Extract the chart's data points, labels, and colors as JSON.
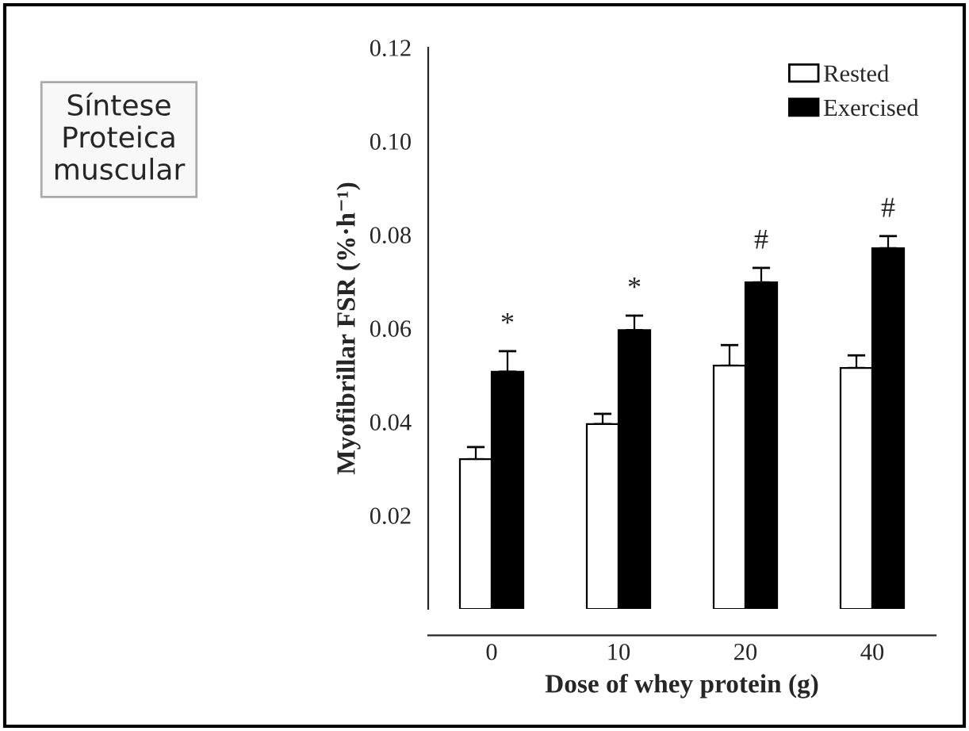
{
  "chart_data": {
    "type": "bar",
    "title": "Síntese\nProteica\nmuscular",
    "xlabel": "Dose of whey protein (g)",
    "ylabel": "Myofibrillar FSR (%·h⁻¹)",
    "categories": [
      "0",
      "10",
      "20",
      "40"
    ],
    "series": [
      {
        "name": "Rested",
        "color": "#ffffff",
        "values": [
          0.032,
          0.0395,
          0.052,
          0.0515
        ],
        "errors": [
          [
            0.032,
            0.0346
          ],
          [
            0.0395,
            0.0417
          ],
          [
            0.052,
            0.0564
          ],
          [
            0.0515,
            0.0542
          ]
        ]
      },
      {
        "name": "Exercised",
        "color": "#000000",
        "values": [
          0.0507,
          0.0596,
          0.0698,
          0.0771
        ],
        "errors": [
          [
            0.0507,
            0.0551
          ],
          [
            0.0596,
            0.0627
          ],
          [
            0.0698,
            0.0729
          ],
          [
            0.0771,
            0.0797
          ]
        ]
      }
    ],
    "annotations": [
      "*",
      "*",
      "#",
      "#"
    ],
    "ylim": [
      0,
      0.12
    ],
    "yticks": [
      0.02,
      0.04,
      0.06,
      0.08,
      {
        "value": 0.1,
        "label": "0.10"
      },
      0.12
    ],
    "legend": "top right",
    "grid": false
  }
}
